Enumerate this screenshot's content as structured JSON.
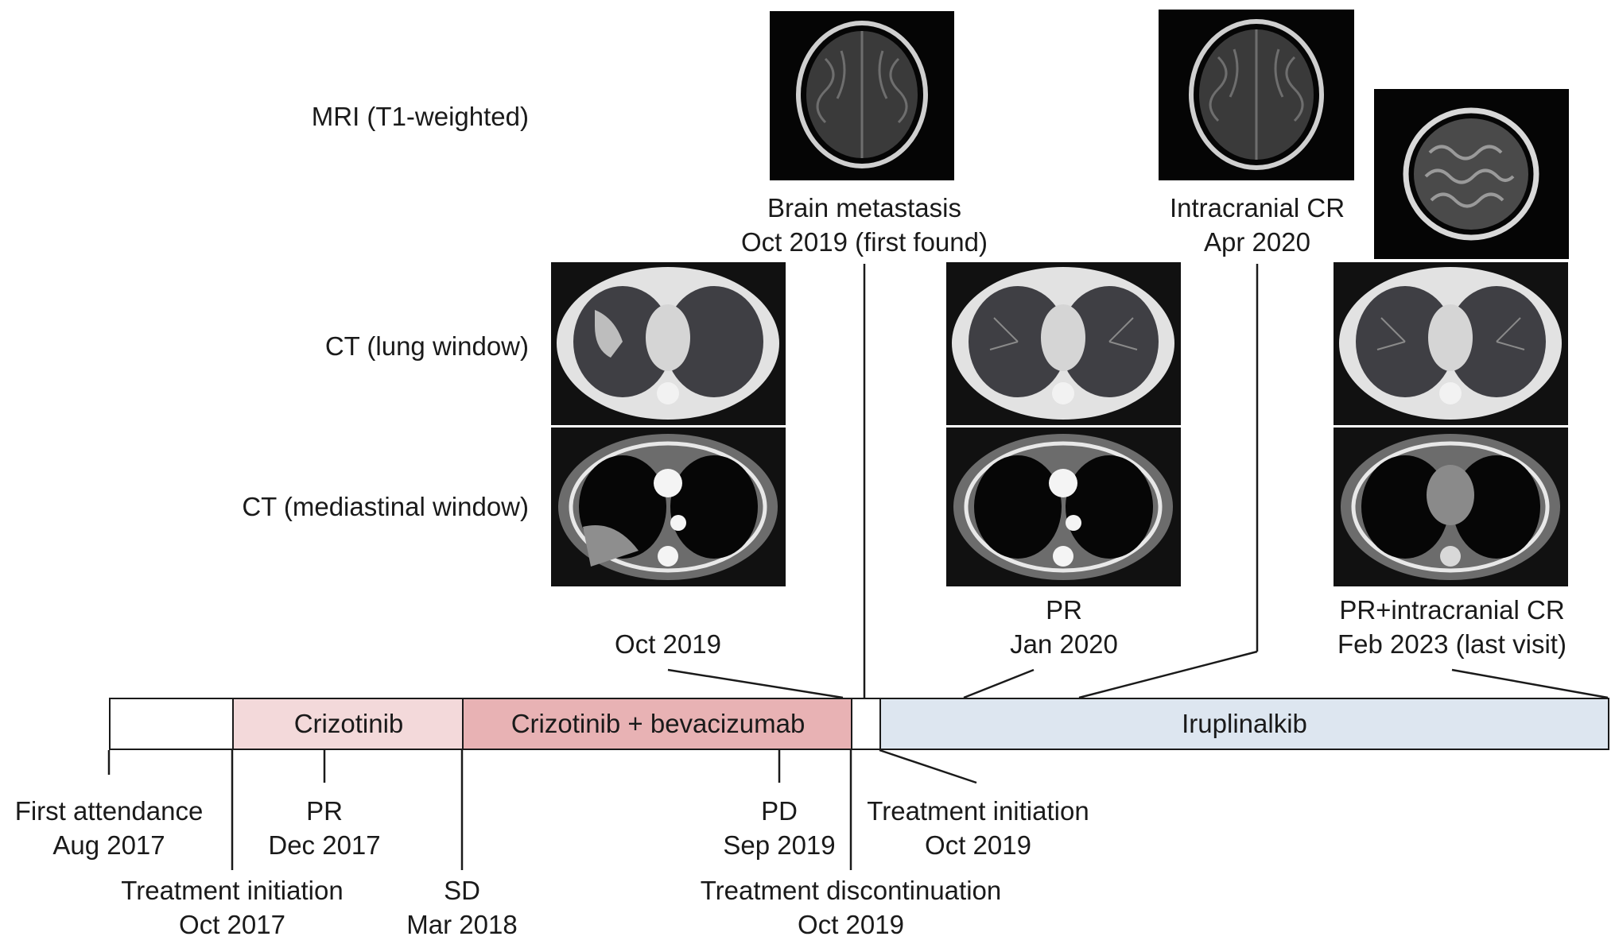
{
  "row_labels": {
    "mri": "MRI (T1-weighted)",
    "ct_lung": "CT (lung window)",
    "ct_mediastinal": "CT (mediastinal window)"
  },
  "top_captions": {
    "brain_metastasis": [
      "Brain metastasis",
      "Oct 2019 (first found)"
    ],
    "intracranial_cr": [
      "Intracranial CR",
      "Apr 2020"
    ]
  },
  "image_captions": {
    "oct_2019": "Oct 2019",
    "pr_jan_2020": [
      "PR",
      "Jan 2020"
    ],
    "last_visit": [
      "PR+intracranial CR",
      "Feb 2023 (last visit)"
    ]
  },
  "timeline": {
    "segments": [
      {
        "label": "",
        "color": "#ffffff"
      },
      {
        "label": "Crizotinib",
        "color": "#f3d9da"
      },
      {
        "label": "Crizotinib + bevacizumab",
        "color": "#e8b2b4"
      },
      {
        "label": "",
        "color": "#ffffff"
      },
      {
        "label": "Iruplinalkib",
        "color": "#dde6f0"
      }
    ],
    "events": {
      "first_attendance": [
        "First attendance",
        "Aug 2017"
      ],
      "treatment_initiation_2017": [
        "Treatment initiation",
        "Oct 2017"
      ],
      "pr_dec_2017": [
        "PR",
        "Dec 2017"
      ],
      "sd_mar_2018": [
        "SD",
        "Mar 2018"
      ],
      "pd_sep_2019": [
        "PD",
        "Sep 2019"
      ],
      "treatment_discontinuation": [
        "Treatment discontinuation",
        "Oct 2019"
      ],
      "treatment_initiation_2019": [
        "Treatment initiation",
        "Oct 2019"
      ]
    }
  },
  "colors": {
    "line": "#1a1a1a",
    "crizotinib": "#f3d9da",
    "crizotinib_bevacizumab": "#e8b2b4",
    "iruplinalkib": "#dde6f0"
  }
}
